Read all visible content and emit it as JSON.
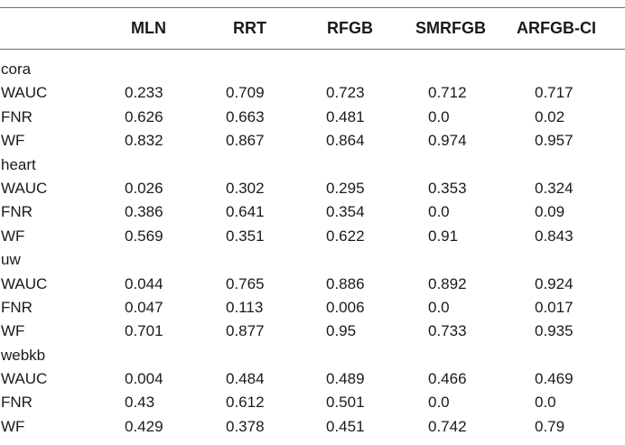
{
  "header": [
    "",
    "MLN",
    "RRT",
    "RFGB",
    "SMRFGB",
    "ARFGB-CI"
  ],
  "groups": [
    {
      "name": "cora",
      "rows": [
        [
          "WAUC",
          "0.233",
          "0.709",
          "0.723",
          "0.712",
          "0.717"
        ],
        [
          "FNR",
          "0.626",
          "0.663",
          "0.481",
          "0.0",
          "0.02"
        ],
        [
          "WF",
          "0.832",
          "0.867",
          "0.864",
          "0.974",
          "0.957"
        ]
      ]
    },
    {
      "name": "heart",
      "rows": [
        [
          "WAUC",
          "0.026",
          "0.302",
          "0.295",
          "0.353",
          "0.324"
        ],
        [
          "FNR",
          "0.386",
          "0.641",
          "0.354",
          "0.0",
          "0.09"
        ],
        [
          "WF",
          "0.569",
          "0.351",
          "0.622",
          "0.91",
          "0.843"
        ]
      ]
    },
    {
      "name": "uw",
      "rows": [
        [
          "WAUC",
          "0.044",
          "0.765",
          "0.886",
          "0.892",
          "0.924"
        ],
        [
          "FNR",
          "0.047",
          "0.113",
          "0.006",
          "0.0",
          "0.017"
        ],
        [
          "WF",
          "0.701",
          "0.877",
          "0.95",
          "0.733",
          "0.935"
        ]
      ]
    },
    {
      "name": "webkb",
      "rows": [
        [
          "WAUC",
          "0.004",
          "0.484",
          "0.489",
          "0.466",
          "0.469"
        ],
        [
          "FNR",
          "0.43",
          "0.612",
          "0.501",
          "0.0",
          "0.0"
        ],
        [
          "WF",
          "0.429",
          "0.378",
          "0.451",
          "0.742",
          "0.79"
        ]
      ]
    }
  ]
}
